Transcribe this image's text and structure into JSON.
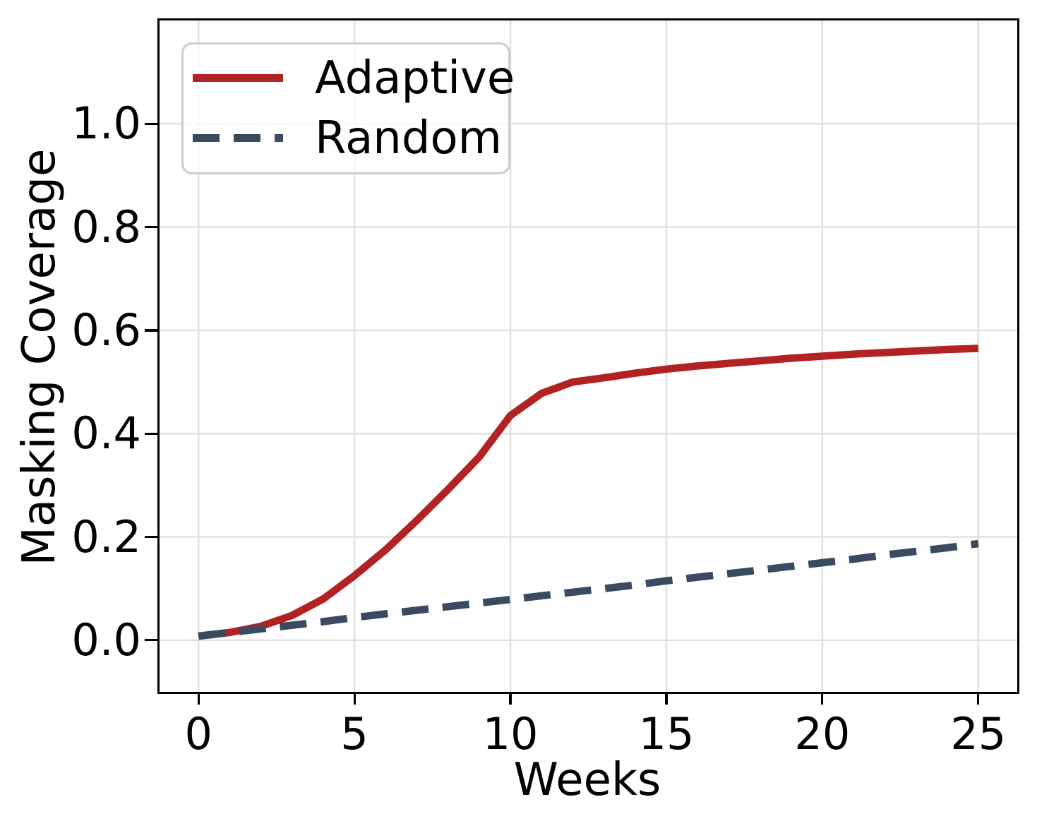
{
  "figure": {
    "background_color": "#ffffff",
    "text_color": "#000000"
  },
  "chart_data": {
    "type": "line",
    "title": "",
    "xlabel": "Weeks",
    "ylabel": "Masking Coverage",
    "xlim": [
      -1.25,
      26.25
    ],
    "ylim": [
      -0.1,
      1.2
    ],
    "grid": true,
    "grid_color": "#e0e0e0",
    "axis_color": "#000000",
    "x_ticks": [
      0,
      5,
      10,
      15,
      20,
      25
    ],
    "x_tick_labels": [
      "0",
      "5",
      "10",
      "15",
      "20",
      "25"
    ],
    "y_ticks": [
      0.0,
      0.2,
      0.4,
      0.6,
      0.8,
      1.0
    ],
    "y_tick_labels": [
      "0.0",
      "0.2",
      "0.4",
      "0.6",
      "0.8",
      "1.0"
    ],
    "legend": {
      "position": "upper left",
      "border_color": "#cccccc",
      "background": "rgba(255,255,255,0.8)"
    },
    "x": [
      0,
      1,
      2,
      3,
      4,
      5,
      6,
      7,
      8,
      9,
      10,
      11,
      12,
      13,
      14,
      15,
      16,
      17,
      18,
      19,
      20,
      21,
      22,
      23,
      24,
      25
    ],
    "series": [
      {
        "name": "Adaptive",
        "style": "solid",
        "color": "#b22222",
        "line_width": 10.5,
        "dash": [],
        "values": [
          0.008,
          0.015,
          0.027,
          0.048,
          0.08,
          0.125,
          0.175,
          0.232,
          0.292,
          0.355,
          0.435,
          0.478,
          0.5,
          0.508,
          0.517,
          0.525,
          0.531,
          0.536,
          0.541,
          0.546,
          0.55,
          0.554,
          0.557,
          0.56,
          0.563,
          0.565
        ]
      },
      {
        "name": "Random",
        "style": "dashed",
        "color": "#3a4a61",
        "line_width": 10.5,
        "dash": [
          38,
          20
        ],
        "values": [
          0.008,
          0.015,
          0.022,
          0.029,
          0.036,
          0.044,
          0.051,
          0.058,
          0.065,
          0.072,
          0.079,
          0.086,
          0.093,
          0.1,
          0.107,
          0.115,
          0.122,
          0.129,
          0.136,
          0.143,
          0.15,
          0.157,
          0.165,
          0.172,
          0.179,
          0.187
        ]
      }
    ]
  }
}
